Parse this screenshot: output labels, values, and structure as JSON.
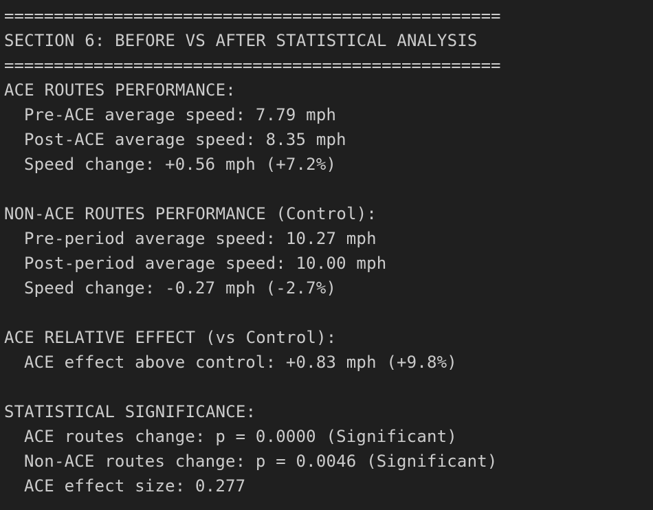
{
  "separator": "==================================================",
  "section_title": "SECTION 6: BEFORE VS AFTER STATISTICAL ANALYSIS",
  "ace_routes": {
    "heading": "ACE ROUTES PERFORMANCE:",
    "lines": [
      "Pre-ACE average speed: 7.79 mph",
      "Post-ACE average speed: 8.35 mph",
      "Speed change: +0.56 mph (+7.2%)"
    ]
  },
  "non_ace_routes": {
    "heading": "NON-ACE ROUTES PERFORMANCE (Control):",
    "lines": [
      "Pre-period average speed: 10.27 mph",
      "Post-period average speed: 10.00 mph",
      "Speed change: -0.27 mph (-2.7%)"
    ]
  },
  "relative_effect": {
    "heading": "ACE RELATIVE EFFECT (vs Control):",
    "lines": [
      "ACE effect above control: +0.83 mph (+9.8%)"
    ]
  },
  "significance": {
    "heading": "STATISTICAL SIGNIFICANCE:",
    "lines": [
      "ACE routes change: p = 0.0000 (Significant)",
      "Non-ACE routes change: p = 0.0046 (Significant)",
      "ACE effect size: 0.277"
    ]
  }
}
